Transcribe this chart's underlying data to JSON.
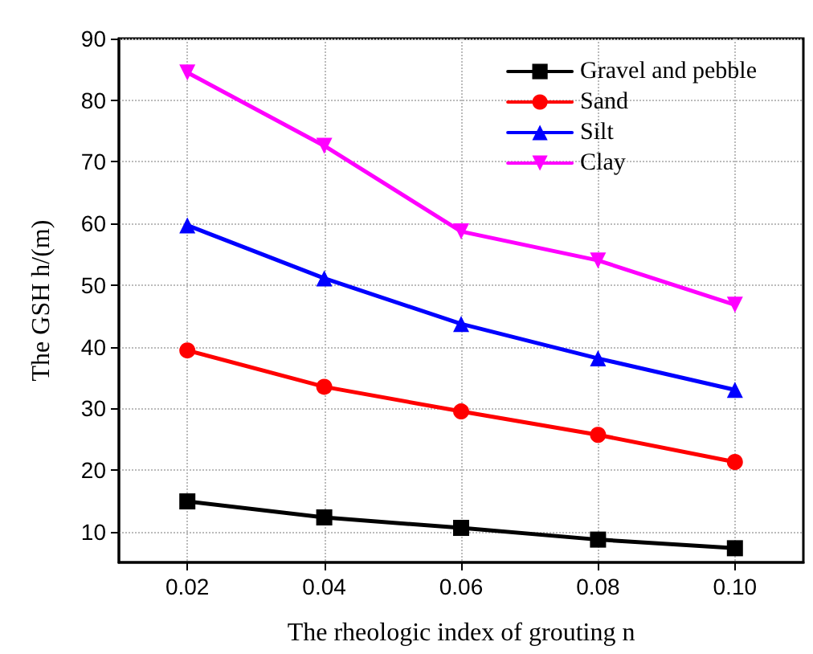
{
  "chart_data": {
    "type": "line",
    "xlabel": "The rheologic index of grouting n",
    "ylabel": "The GSH h/(m)",
    "x": [
      0.02,
      0.04,
      0.06,
      0.08,
      0.1
    ],
    "series": [
      {
        "name": "Gravel and pebble",
        "color": "#000000",
        "marker": "square",
        "values": [
          14.9,
          12.3,
          10.6,
          8.7,
          7.3
        ]
      },
      {
        "name": "Sand",
        "color": "#ff0000",
        "marker": "circle",
        "values": [
          39.4,
          33.5,
          29.5,
          25.7,
          21.3
        ]
      },
      {
        "name": "Silt",
        "color": "#0000ff",
        "marker": "triangle",
        "values": [
          59.7,
          51.1,
          43.7,
          38.1,
          33.0
        ]
      },
      {
        "name": "Clay",
        "color": "#ff00ff",
        "marker": "triangle-down",
        "values": [
          84.5,
          72.6,
          58.7,
          54.0,
          46.8
        ]
      }
    ],
    "xlim": [
      0.01,
      0.11
    ],
    "xticks": [
      0.02,
      0.04,
      0.06,
      0.08,
      {
        "value": 0.1,
        "label": "0.10"
      }
    ],
    "ylim": [
      5,
      90
    ],
    "yticks": [
      10,
      20,
      30,
      40,
      50,
      60,
      70,
      80,
      90
    ],
    "grid": true,
    "legend": "top right"
  }
}
